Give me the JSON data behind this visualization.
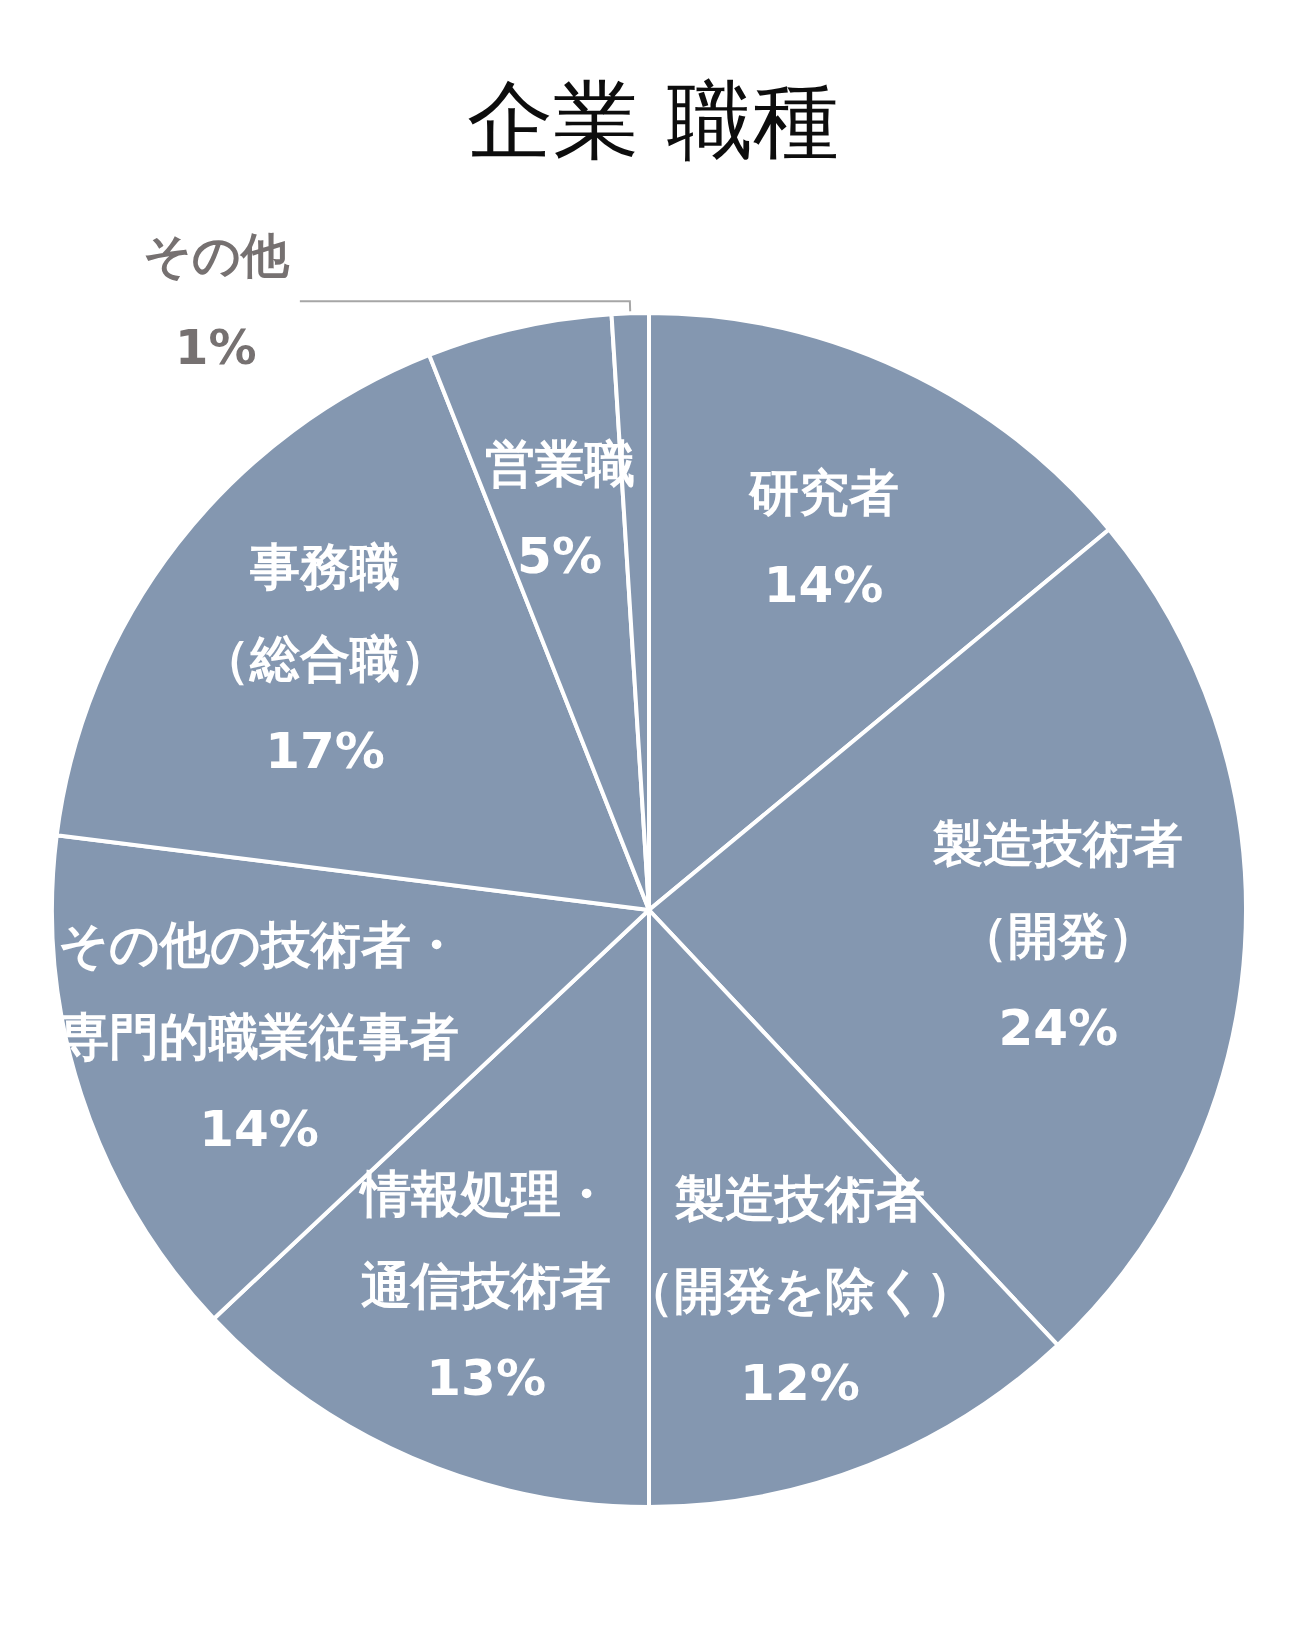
{
  "chart_data": {
    "type": "pie",
    "title": "企業 職種",
    "categories": [
      "研究者",
      "製造技術者（開発）",
      "製造技術者（開発を除く）",
      "情報処理・通信技術者",
      "その他の技術者・専門的職業従事者",
      "事務職（総合職）",
      "営業職",
      "その他"
    ],
    "values": [
      14,
      24,
      12,
      13,
      14,
      17,
      5,
      1
    ],
    "value_labels": [
      "14%",
      "24%",
      "12%",
      "13%",
      "14%",
      "17%",
      "5%",
      "1%"
    ],
    "colors": [
      "#8497b0",
      "#8497b0",
      "#8497b0",
      "#8497b0",
      "#8497b0",
      "#8497b0",
      "#8497b0",
      "#8497b0"
    ]
  }
}
